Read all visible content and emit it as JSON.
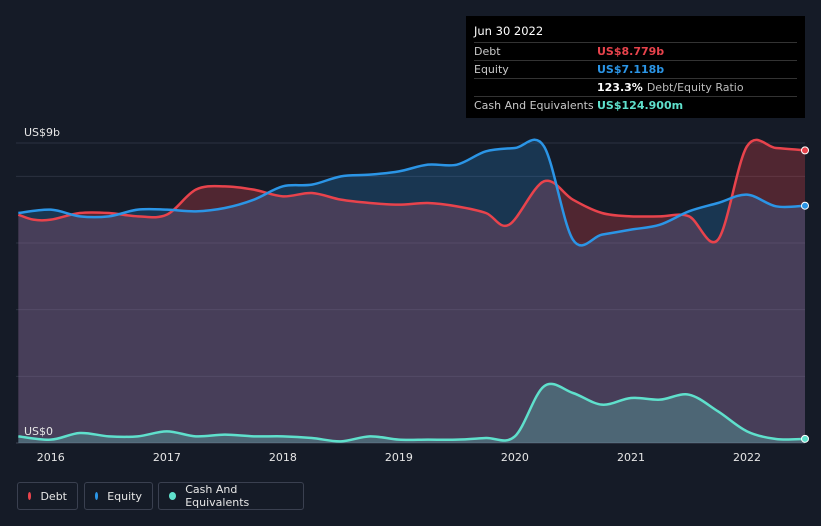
{
  "tooltip": {
    "date": "Jun 30 2022",
    "rows": [
      {
        "label": "Debt",
        "value": "US$8.779b",
        "color": "#e8434c"
      },
      {
        "label": "Equity",
        "value": "US$7.118b",
        "color": "#2b95e6"
      },
      {
        "label": "",
        "ratio_value": "123.3%",
        "ratio_label": "Debt/Equity Ratio"
      },
      {
        "label": "Cash And Equivalents",
        "value": "US$124.900m",
        "color": "#5fe0cc"
      }
    ]
  },
  "legend": [
    {
      "label": "Debt",
      "color": "#e8434c"
    },
    {
      "label": "Equity",
      "color": "#2b95e6"
    },
    {
      "label": "Cash And Equivalents",
      "color": "#5fe0cc"
    }
  ],
  "chart_data": {
    "type": "area",
    "y_unit_label_top": "US$9b",
    "y_unit_label_bottom": "US$0",
    "ylim": [
      0,
      9
    ],
    "xlim": [
      2015.7,
      2022.5
    ],
    "x_ticks": [
      "2016",
      "2017",
      "2018",
      "2019",
      "2020",
      "2021",
      "2022"
    ],
    "grid": true,
    "legend_position": "bottom-left",
    "series": [
      {
        "name": "Debt",
        "color": "#e8434c",
        "points": [
          [
            2015.72,
            6.85
          ],
          [
            2015.85,
            6.7
          ],
          [
            2016.0,
            6.7
          ],
          [
            2016.25,
            6.9
          ],
          [
            2016.5,
            6.9
          ],
          [
            2016.75,
            6.8
          ],
          [
            2017.0,
            6.85
          ],
          [
            2017.25,
            7.6
          ],
          [
            2017.5,
            7.7
          ],
          [
            2017.75,
            7.6
          ],
          [
            2018.0,
            7.4
          ],
          [
            2018.25,
            7.5
          ],
          [
            2018.5,
            7.3
          ],
          [
            2018.75,
            7.2
          ],
          [
            2019.0,
            7.15
          ],
          [
            2019.25,
            7.2
          ],
          [
            2019.5,
            7.1
          ],
          [
            2019.75,
            6.9
          ],
          [
            2019.95,
            6.55
          ],
          [
            2020.25,
            7.85
          ],
          [
            2020.5,
            7.3
          ],
          [
            2020.75,
            6.9
          ],
          [
            2021.0,
            6.8
          ],
          [
            2021.25,
            6.8
          ],
          [
            2021.5,
            6.8
          ],
          [
            2021.75,
            6.1
          ],
          [
            2022.0,
            8.9
          ],
          [
            2022.25,
            8.85
          ],
          [
            2022.5,
            8.779
          ]
        ]
      },
      {
        "name": "Equity",
        "color": "#2b95e6",
        "points": [
          [
            2015.72,
            6.9
          ],
          [
            2016.0,
            7.0
          ],
          [
            2016.25,
            6.8
          ],
          [
            2016.5,
            6.8
          ],
          [
            2016.75,
            7.0
          ],
          [
            2017.0,
            7.0
          ],
          [
            2017.25,
            6.95
          ],
          [
            2017.5,
            7.05
          ],
          [
            2017.75,
            7.3
          ],
          [
            2018.0,
            7.7
          ],
          [
            2018.25,
            7.75
          ],
          [
            2018.5,
            8.0
          ],
          [
            2018.75,
            8.05
          ],
          [
            2019.0,
            8.15
          ],
          [
            2019.25,
            8.35
          ],
          [
            2019.5,
            8.35
          ],
          [
            2019.75,
            8.75
          ],
          [
            2020.0,
            8.85
          ],
          [
            2020.25,
            8.9
          ],
          [
            2020.5,
            6.1
          ],
          [
            2020.75,
            6.25
          ],
          [
            2021.0,
            6.4
          ],
          [
            2021.25,
            6.55
          ],
          [
            2021.5,
            6.95
          ],
          [
            2021.75,
            7.2
          ],
          [
            2022.0,
            7.45
          ],
          [
            2022.25,
            7.1
          ],
          [
            2022.5,
            7.118
          ]
        ]
      },
      {
        "name": "Cash And Equivalents",
        "color": "#5fe0cc",
        "points": [
          [
            2015.72,
            0.2
          ],
          [
            2016.0,
            0.1
          ],
          [
            2016.25,
            0.3
          ],
          [
            2016.5,
            0.2
          ],
          [
            2016.75,
            0.2
          ],
          [
            2017.0,
            0.35
          ],
          [
            2017.25,
            0.2
          ],
          [
            2017.5,
            0.25
          ],
          [
            2017.75,
            0.2
          ],
          [
            2018.0,
            0.2
          ],
          [
            2018.25,
            0.15
          ],
          [
            2018.5,
            0.05
          ],
          [
            2018.75,
            0.2
          ],
          [
            2019.0,
            0.1
          ],
          [
            2019.25,
            0.1
          ],
          [
            2019.5,
            0.1
          ],
          [
            2019.75,
            0.15
          ],
          [
            2020.0,
            0.2
          ],
          [
            2020.25,
            1.7
          ],
          [
            2020.5,
            1.5
          ],
          [
            2020.75,
            1.15
          ],
          [
            2021.0,
            1.35
          ],
          [
            2021.25,
            1.3
          ],
          [
            2021.5,
            1.45
          ],
          [
            2021.75,
            0.95
          ],
          [
            2022.0,
            0.35
          ],
          [
            2022.25,
            0.12
          ],
          [
            2022.5,
            0.1249
          ]
        ]
      }
    ]
  }
}
